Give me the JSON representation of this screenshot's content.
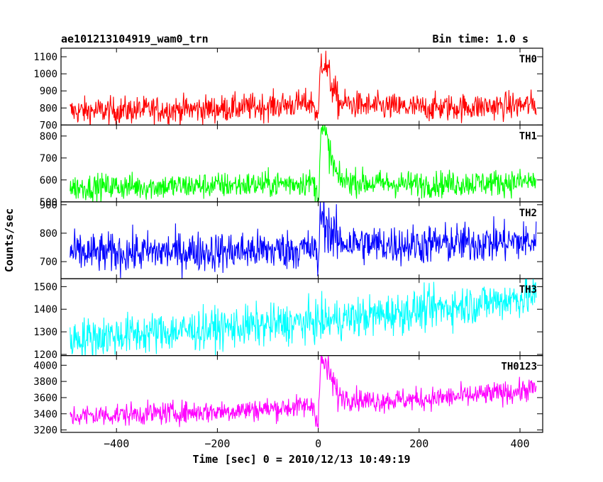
{
  "chart_data": {
    "type": "line",
    "title": "ae101213104919_wam0_trn",
    "bin_time_label": "Bin time: 1.0 s",
    "xlabel": "Time [sec] 0 = 2010/12/13 10:49:19",
    "ylabel": "Counts/sec",
    "xlim": [
      -510,
      445
    ],
    "x_ticks": [
      -400,
      -200,
      0,
      200,
      400
    ],
    "x_tick_labels": [
      "−400",
      "−200",
      "0",
      "200",
      "400"
    ],
    "panels": [
      {
        "name": "TH0",
        "color": "#ff0000",
        "ylim": [
          700,
          1150
        ],
        "y_ticks": [
          700,
          800,
          900,
          1000,
          1100
        ],
        "baseline_start": 780,
        "baseline_pre_burst": 830,
        "baseline_end": 810,
        "noise": 40,
        "burst_peak": 1120,
        "series_x": [
          -490,
          -400,
          -300,
          -200,
          -100,
          -10,
          0,
          5,
          15,
          25,
          40,
          100,
          200,
          300,
          400,
          430
        ],
        "series_y": [
          780,
          785,
          790,
          795,
          810,
          830,
          720,
          1100,
          1050,
          950,
          830,
          810,
          800,
          805,
          815,
          820
        ]
      },
      {
        "name": "TH1",
        "color": "#00ff00",
        "ylim": [
          500,
          850
        ],
        "y_ticks": [
          500,
          600,
          700,
          800
        ],
        "baseline_start": 565,
        "baseline_pre_burst": 590,
        "baseline_end": 595,
        "noise": 30,
        "burst_peak": 850,
        "series_x": [
          -490,
          -400,
          -300,
          -200,
          -100,
          -10,
          0,
          5,
          15,
          25,
          40,
          100,
          200,
          300,
          400,
          430
        ],
        "series_y": [
          565,
          570,
          570,
          575,
          580,
          590,
          510,
          830,
          800,
          700,
          600,
          585,
          580,
          585,
          590,
          595
        ]
      },
      {
        "name": "TH2",
        "color": "#0000ff",
        "ylim": [
          640,
          910
        ],
        "y_ticks": [
          700,
          800,
          900
        ],
        "baseline_start": 730,
        "baseline_pre_burst": 745,
        "baseline_end": 770,
        "noise": 35,
        "burst_peak": 880,
        "series_x": [
          -490,
          -400,
          -300,
          -200,
          -100,
          -10,
          0,
          5,
          15,
          25,
          40,
          100,
          200,
          300,
          400,
          430
        ],
        "series_y": [
          730,
          730,
          735,
          735,
          740,
          745,
          700,
          870,
          840,
          800,
          770,
          760,
          760,
          765,
          770,
          770
        ]
      },
      {
        "name": "TH3",
        "color": "#00ffff",
        "ylim": [
          1195,
          1535
        ],
        "y_ticks": [
          1200,
          1300,
          1400,
          1500
        ],
        "baseline_start": 1270,
        "baseline_pre_burst": 1340,
        "baseline_end": 1460,
        "noise": 45,
        "burst_peak": null,
        "series_x": [
          -490,
          -400,
          -300,
          -200,
          -100,
          0,
          100,
          200,
          300,
          400,
          430
        ],
        "series_y": [
          1270,
          1285,
          1300,
          1315,
          1330,
          1345,
          1370,
          1395,
          1420,
          1450,
          1460
        ]
      },
      {
        "name": "TH0123",
        "color": "#ff00ff",
        "ylim": [
          3170,
          4120
        ],
        "y_ticks": [
          3200,
          3400,
          3600,
          3800,
          4000
        ],
        "baseline_start": 3370,
        "baseline_pre_burst": 3500,
        "baseline_end": 3720,
        "noise": 70,
        "burst_peak": 4080,
        "series_x": [
          -490,
          -400,
          -300,
          -200,
          -100,
          -10,
          0,
          5,
          15,
          25,
          40,
          100,
          200,
          300,
          400,
          430
        ],
        "series_y": [
          3370,
          3390,
          3410,
          3430,
          3460,
          3500,
          3300,
          4050,
          4000,
          3850,
          3620,
          3560,
          3580,
          3620,
          3680,
          3720
        ]
      }
    ]
  }
}
